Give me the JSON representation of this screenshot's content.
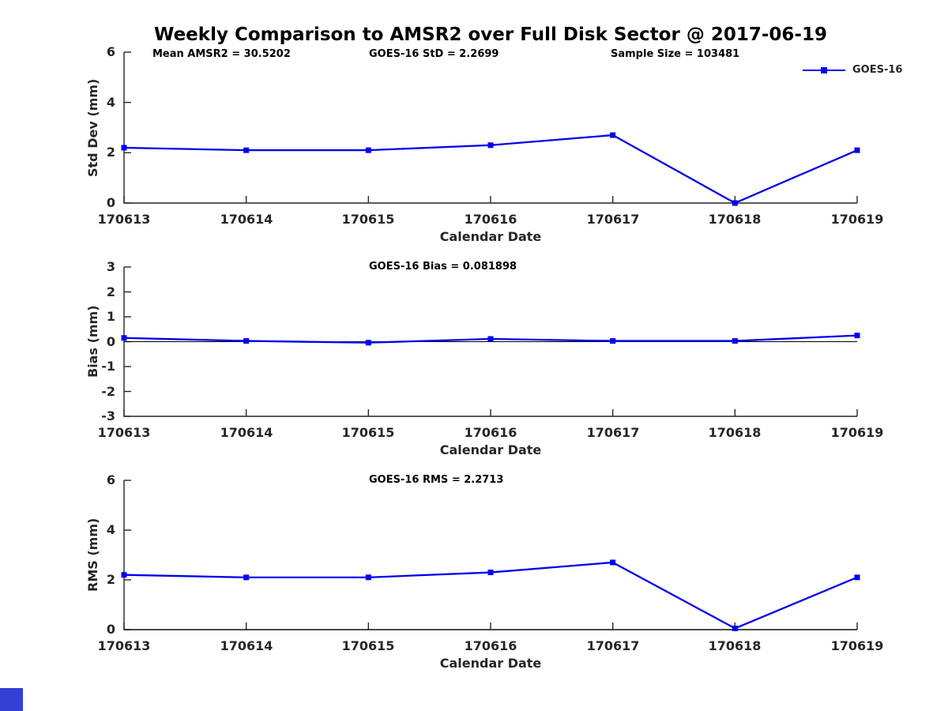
{
  "page": {
    "title": "Weekly Comparison to AMSR2 over Full Disk Sector @ 2017-06-19"
  },
  "legend": {
    "label": "GOES-16"
  },
  "colors": {
    "line": "#0000EE",
    "axis": "#262626",
    "zero_line": "#000000",
    "corner_square": "#3240D4"
  },
  "chart_data": [
    {
      "type": "line",
      "title": "",
      "categories": [
        "170613",
        "170614",
        "170615",
        "170616",
        "170617",
        "170618",
        "170619"
      ],
      "series": [
        {
          "name": "GOES-16",
          "color": "#0000EE",
          "marker": "square",
          "values": [
            2.2,
            2.1,
            2.1,
            2.3,
            2.7,
            0.0,
            2.1
          ]
        }
      ],
      "xlabel": "Calendar Date",
      "ylabel": "Std Dev (mm)",
      "ylim": [
        0,
        6
      ],
      "yticks": [
        0,
        2,
        4,
        6
      ],
      "grid": false,
      "legend_position": "top-right-outside",
      "zero_line": false,
      "annotations": [
        "Mean AMSR2 = 30.5202",
        "GOES-16 StD = 2.2699",
        "Sample Size = 103481"
      ]
    },
    {
      "type": "line",
      "title": "",
      "categories": [
        "170613",
        "170614",
        "170615",
        "170616",
        "170617",
        "170618",
        "170619"
      ],
      "series": [
        {
          "name": "GOES-16",
          "color": "#0000EE",
          "marker": "square",
          "values": [
            0.15,
            0.03,
            -0.04,
            0.11,
            0.03,
            0.03,
            0.25
          ]
        }
      ],
      "xlabel": "Calendar Date",
      "ylabel": "Bias (mm)",
      "ylim": [
        -3,
        3
      ],
      "yticks": [
        -3,
        -2,
        -1,
        0,
        1,
        2,
        3
      ],
      "grid": false,
      "legend_position": "none",
      "zero_line": true,
      "annotations": [
        "GOES-16 Bias  = 0.081898"
      ]
    },
    {
      "type": "line",
      "title": "",
      "categories": [
        "170613",
        "170614",
        "170615",
        "170616",
        "170617",
        "170618",
        "170619"
      ],
      "series": [
        {
          "name": "GOES-16",
          "color": "#0000EE",
          "marker": "square",
          "values": [
            2.2,
            2.1,
            2.1,
            2.3,
            2.7,
            0.05,
            2.1
          ]
        }
      ],
      "xlabel": "Calendar Date",
      "ylabel": "RMS (mm)",
      "ylim": [
        0,
        6
      ],
      "yticks": [
        0,
        2,
        4,
        6
      ],
      "grid": false,
      "legend_position": "none",
      "zero_line": true,
      "annotations": [
        "GOES-16 RMS = 2.2713"
      ]
    }
  ]
}
